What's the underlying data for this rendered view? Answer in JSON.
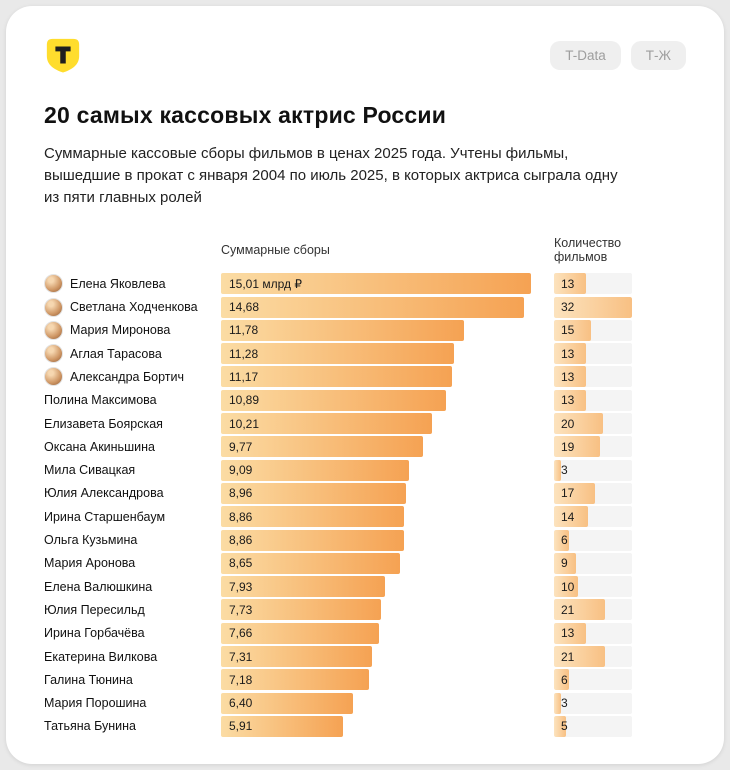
{
  "header": {
    "logo": "T-logo-shield",
    "badges": [
      {
        "label": "T-Data"
      },
      {
        "label": "Т-Ж"
      }
    ],
    "title": "20 самых кассовых актрис России",
    "subtitle": "Суммарные кассовые сборы фильмов в ценах 2025 года. Учтены фильмы, вышедшие в прокат с января 2004 по июль 2025, в которых актриса сыграла одну из пяти главных ролей"
  },
  "colors": {
    "brand_yellow": "#FFDD2D",
    "bar_gradient_start": "#FBDCA4",
    "bar_gradient_end": "#F5A253",
    "films_gradient_start": "#FCE3BE",
    "films_gradient_end": "#F8C083",
    "track": "#F4F4F4",
    "badge_bg": "#EFEFEF",
    "badge_text": "#9E9E9E"
  },
  "chart_data": {
    "type": "bar",
    "orientation": "horizontal",
    "col1_header": "Суммарные сборы",
    "col2_header": "Количество фильмов",
    "value_unit": "млрд ₽",
    "value_max": 15.01,
    "count_max": 32,
    "rows": [
      {
        "name": "Елена Яковлева",
        "value": 15.01,
        "value_label": "15,01 млрд ₽",
        "films": 13,
        "avatar": true
      },
      {
        "name": "Светлана Ходченкова",
        "value": 14.68,
        "value_label": "14,68",
        "films": 32,
        "avatar": true
      },
      {
        "name": "Мария Миронова",
        "value": 11.78,
        "value_label": "11,78",
        "films": 15,
        "avatar": true
      },
      {
        "name": "Аглая Тарасова",
        "value": 11.28,
        "value_label": "11,28",
        "films": 13,
        "avatar": true
      },
      {
        "name": "Александра Бортич",
        "value": 11.17,
        "value_label": "11,17",
        "films": 13,
        "avatar": true
      },
      {
        "name": "Полина Максимова",
        "value": 10.89,
        "value_label": "10,89",
        "films": 13,
        "avatar": false
      },
      {
        "name": "Елизавета Боярская",
        "value": 10.21,
        "value_label": "10,21",
        "films": 20,
        "avatar": false
      },
      {
        "name": "Оксана Акиньшина",
        "value": 9.77,
        "value_label": "9,77",
        "films": 19,
        "avatar": false
      },
      {
        "name": "Мила Сивацкая",
        "value": 9.09,
        "value_label": "9,09",
        "films": 3,
        "avatar": false
      },
      {
        "name": "Юлия Александрова",
        "value": 8.96,
        "value_label": "8,96",
        "films": 17,
        "avatar": false
      },
      {
        "name": "Ирина Старшенбаум",
        "value": 8.86,
        "value_label": "8,86",
        "films": 14,
        "avatar": false
      },
      {
        "name": "Ольга Кузьмина",
        "value": 8.86,
        "value_label": "8,86",
        "films": 6,
        "avatar": false
      },
      {
        "name": "Мария Аронова",
        "value": 8.65,
        "value_label": "8,65",
        "films": 9,
        "avatar": false
      },
      {
        "name": "Елена Валюшкина",
        "value": 7.93,
        "value_label": "7,93",
        "films": 10,
        "avatar": false
      },
      {
        "name": "Юлия Пересильд",
        "value": 7.73,
        "value_label": "7,73",
        "films": 21,
        "avatar": false
      },
      {
        "name": "Ирина Горбачёва",
        "value": 7.66,
        "value_label": "7,66",
        "films": 13,
        "avatar": false
      },
      {
        "name": "Екатерина Вилкова",
        "value": 7.31,
        "value_label": "7,31",
        "films": 21,
        "avatar": false
      },
      {
        "name": "Галина Тюнина",
        "value": 7.18,
        "value_label": "7,18",
        "films": 6,
        "avatar": false
      },
      {
        "name": "Мария Порошина",
        "value": 6.4,
        "value_label": "6,40",
        "films": 3,
        "avatar": false
      },
      {
        "name": "Татьяна Бунина",
        "value": 5.91,
        "value_label": "5,91",
        "films": 5,
        "avatar": false
      }
    ]
  }
}
